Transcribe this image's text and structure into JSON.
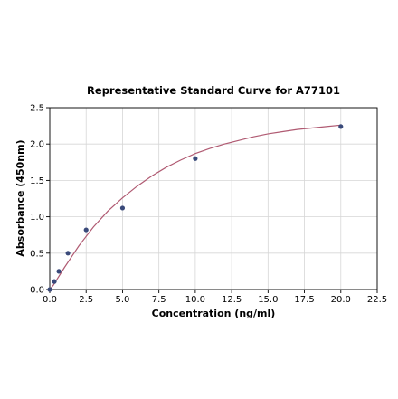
{
  "chart_data": {
    "type": "scatter",
    "title": "Representative Standard Curve for A77101",
    "xlabel": "Concentration (ng/ml)",
    "ylabel": "Absorbance (450nm)",
    "xlim": [
      0,
      22.5
    ],
    "ylim": [
      0,
      2.5
    ],
    "xticks": [
      "0.0",
      "2.5",
      "5.0",
      "7.5",
      "10.0",
      "12.5",
      "15.0",
      "17.5",
      "20.0",
      "22.5"
    ],
    "yticks": [
      "0.0",
      "0.5",
      "1.0",
      "1.5",
      "2.0",
      "2.5"
    ],
    "grid": true,
    "series": [
      {
        "x": [
          0,
          0.313,
          0.625,
          1.25,
          2.5,
          5,
          10,
          20
        ],
        "y": [
          0.0,
          0.11,
          0.25,
          0.5,
          0.82,
          1.12,
          1.8,
          2.24
        ],
        "marker_color": "#3a4a7a"
      }
    ],
    "fit_curve": {
      "x": [
        0,
        0.25,
        0.5,
        1,
        1.5,
        2,
        2.5,
        3,
        4,
        5,
        6,
        7,
        8,
        9,
        10,
        11,
        12,
        13,
        14,
        15,
        16,
        17,
        18,
        19,
        20
      ],
      "y": [
        0.0,
        0.06,
        0.14,
        0.3,
        0.45,
        0.6,
        0.73,
        0.86,
        1.08,
        1.26,
        1.42,
        1.56,
        1.68,
        1.78,
        1.87,
        1.94,
        2.0,
        2.05,
        2.1,
        2.14,
        2.17,
        2.2,
        2.22,
        2.24,
        2.26
      ],
      "color": "#b05a72"
    }
  }
}
